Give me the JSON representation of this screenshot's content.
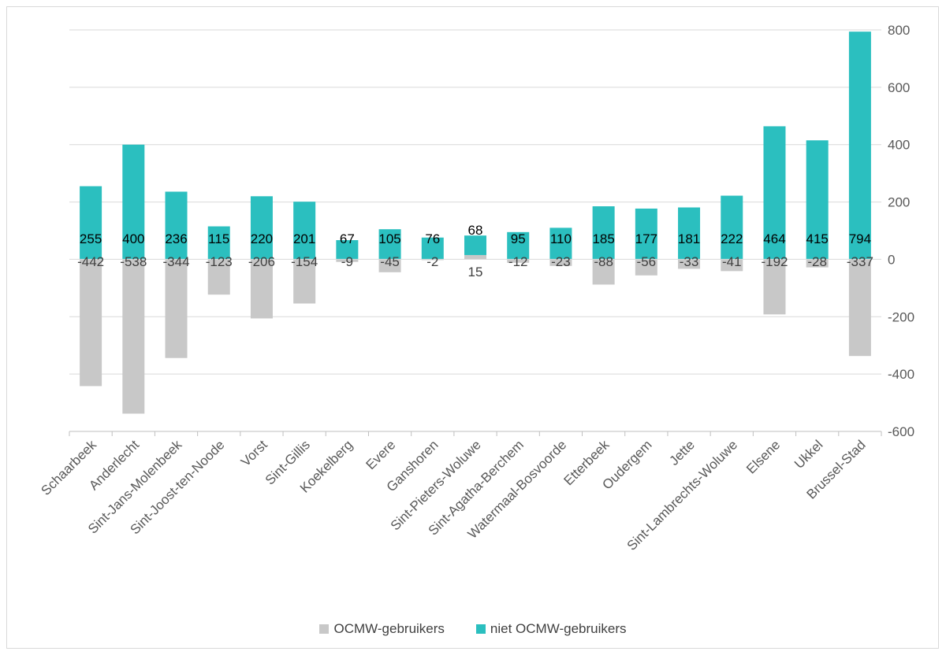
{
  "chart_data": {
    "type": "bar",
    "stacked": true,
    "categories": [
      "Schaarbeek",
      "Anderlecht",
      "Sint-Jans-Molenbeek",
      "Sint-Joost-ten-Noode",
      "Vorst",
      "Sint-Gillis",
      "Koekelberg",
      "Evere",
      "Ganshoren",
      "Sint-Pieters-Woluwe",
      "Sint-Agatha-Berchem",
      "Watermaal-Bosvoorde",
      "Etterbeek",
      "Oudergem",
      "Jette",
      "Sint-Lambrechts-Woluwe",
      "Elsene",
      "Ukkel",
      "Brussel-Stad"
    ],
    "series": [
      {
        "name": "OCMW-gebruikers",
        "color": "#c8c8c8",
        "values": [
          -442,
          -538,
          -344,
          -123,
          -206,
          -154,
          -9,
          -45,
          -2,
          15,
          -12,
          -23,
          -88,
          -56,
          -33,
          -41,
          -192,
          -28,
          -337
        ]
      },
      {
        "name": "niet OCMW-gebruikers",
        "color": "#2bbfbf",
        "values": [
          255,
          400,
          236,
          115,
          220,
          201,
          67,
          105,
          76,
          68,
          95,
          110,
          185,
          177,
          181,
          222,
          464,
          415,
          794
        ]
      }
    ],
    "ylim": [
      -600,
      800
    ],
    "yticks": [
      800,
      600,
      400,
      200,
      0,
      -200,
      -400,
      -600
    ],
    "y_axis_position": "right",
    "grid": true,
    "legend": "bottom"
  }
}
